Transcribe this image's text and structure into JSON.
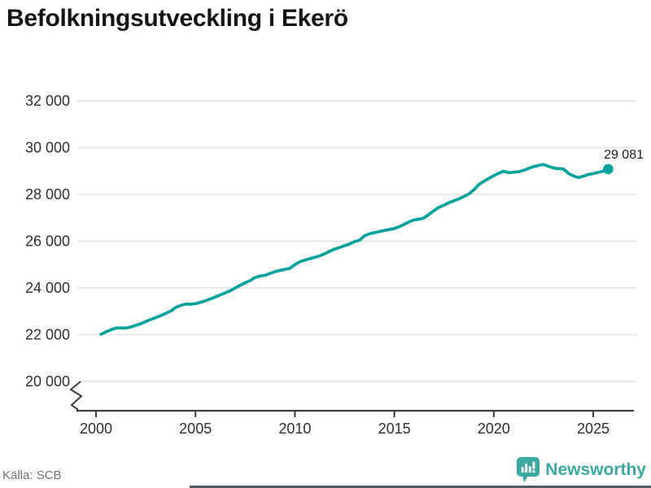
{
  "title": "Befolkningsutveckling i Ekerö",
  "source": {
    "label": "Källa: SCB"
  },
  "branding": {
    "name": "Newsworthy",
    "color": "#3ba8a2"
  },
  "colors": {
    "line": "#00a29b",
    "gridline": "#e2e2e2",
    "axis": "#3c3c3c",
    "tick_label": "#2f2f2f",
    "end_label": "#1f1f1f"
  },
  "chart_data": {
    "type": "line",
    "title": "Befolkningsutveckling i Ekerö",
    "xlabel": "",
    "ylabel": "",
    "grid": "horizontal",
    "y_axis_break": true,
    "xlim": [
      2000,
      2026
    ],
    "ylim": [
      20000,
      32000
    ],
    "x_ticks": [
      2000,
      2005,
      2010,
      2015,
      2020,
      2025
    ],
    "x_tick_labels": [
      "2000",
      "2005",
      "2010",
      "2015",
      "2020",
      "2025"
    ],
    "y_ticks": [
      20000,
      22000,
      24000,
      26000,
      28000,
      30000,
      32000
    ],
    "y_tick_labels": [
      "20 000",
      "22 000",
      "24 000",
      "26 000",
      "28 000",
      "30 000",
      "32 000"
    ],
    "end_label": "29 081",
    "end_value": 29081,
    "x_start": 2000.25,
    "x_step": 0.25,
    "series": [
      {
        "name": "Befolkning",
        "color": "#00a29b",
        "values": [
          22017,
          22120,
          22210,
          22280,
          22290,
          22285,
          22330,
          22400,
          22470,
          22560,
          22650,
          22730,
          22810,
          22910,
          23010,
          23160,
          23250,
          23310,
          23300,
          23330,
          23380,
          23450,
          23530,
          23610,
          23700,
          23790,
          23880,
          24000,
          24110,
          24220,
          24310,
          24450,
          24510,
          24540,
          24620,
          24700,
          24750,
          24790,
          24840,
          25000,
          25120,
          25190,
          25250,
          25310,
          25370,
          25460,
          25570,
          25660,
          25730,
          25810,
          25880,
          25980,
          26040,
          26230,
          26320,
          26360,
          26410,
          26460,
          26500,
          26540,
          26620,
          26720,
          26830,
          26910,
          26940,
          27000,
          27150,
          27310,
          27450,
          27540,
          27650,
          27730,
          27810,
          27910,
          28020,
          28200,
          28420,
          28560,
          28680,
          28800,
          28900,
          28990,
          28930,
          28950,
          28970,
          29030,
          29110,
          29190,
          29240,
          29280,
          29200,
          29130,
          29100,
          29090,
          28900,
          28790,
          28715,
          28780,
          28850,
          28890,
          28940,
          28990,
          29081
        ]
      }
    ]
  }
}
